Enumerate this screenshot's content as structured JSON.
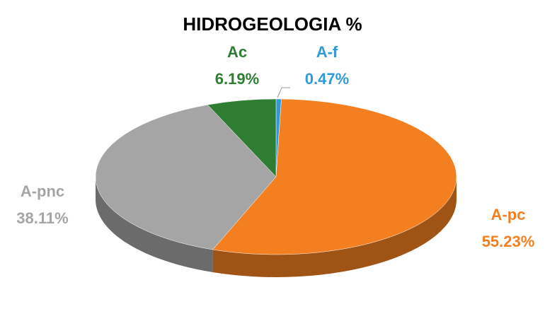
{
  "chart_data": {
    "type": "pie",
    "title": "HIDROGEOLOGIA %",
    "categories": [
      "A-f",
      "A-pc",
      "A-pnc",
      "Ac"
    ],
    "values": [
      0.47,
      55.23,
      38.11,
      6.19
    ],
    "value_labels": [
      "0.47%",
      "55.23%",
      "38.11%",
      "6.19%"
    ],
    "colors": [
      "#2e9bd6",
      "#f47f20",
      "#a5a5a5",
      "#2e7d32"
    ]
  }
}
